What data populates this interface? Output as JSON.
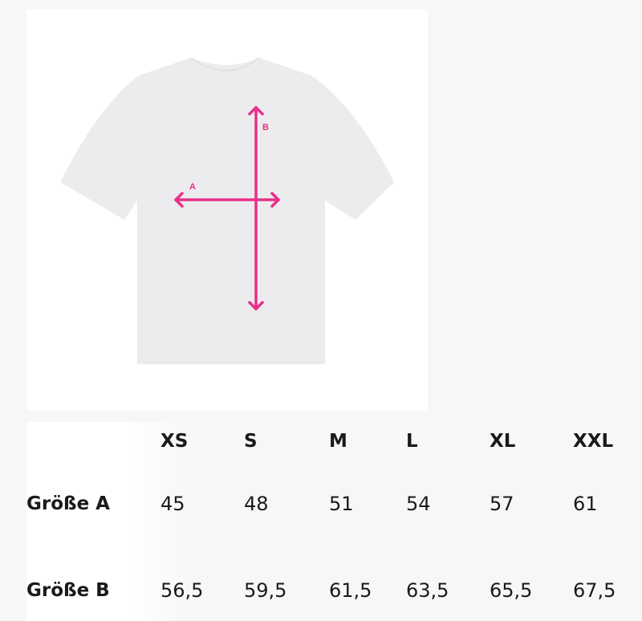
{
  "diagram": {
    "label_a": "A",
    "label_b": "B",
    "arrow_color": "#e8308a",
    "shirt_color": "#ececee"
  },
  "table": {
    "headers": [
      "XS",
      "S",
      "M",
      "L",
      "XL",
      "XXL"
    ],
    "rows": [
      {
        "label": "Größe A",
        "values": [
          "45",
          "48",
          "51",
          "54",
          "57",
          "61"
        ]
      },
      {
        "label": "Größe B",
        "values": [
          "56,5",
          "59,5",
          "61,5",
          "63,5",
          "65,5",
          "67,5"
        ]
      }
    ]
  }
}
